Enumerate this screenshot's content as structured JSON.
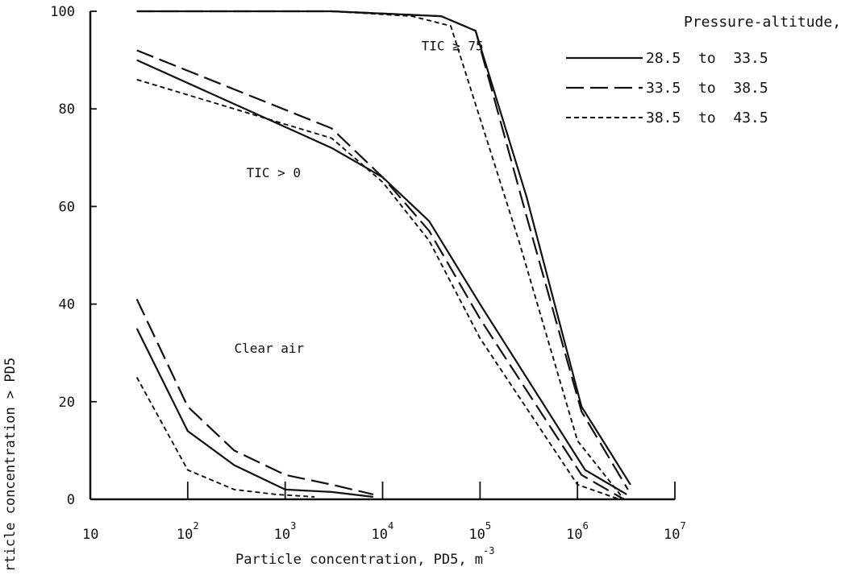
{
  "chart_data": {
    "type": "line",
    "x_scale": "log",
    "xlabel": "Particle concentration, PD5, m",
    "xlabel_exponent": "-3",
    "ylabel": "rticle concentration > PD5",
    "xlim": [
      10,
      10000000
    ],
    "ylim": [
      0,
      100
    ],
    "grid": false,
    "x_ticks": [
      {
        "base": "10",
        "exp": "",
        "value": 10
      },
      {
        "base": "10",
        "exp": "2",
        "value": 100
      },
      {
        "base": "10",
        "exp": "3",
        "value": 1000
      },
      {
        "base": "10",
        "exp": "4",
        "value": 10000
      },
      {
        "base": "10",
        "exp": "5",
        "value": 100000
      },
      {
        "base": "10",
        "exp": "6",
        "value": 1000000
      },
      {
        "base": "10",
        "exp": "7",
        "value": 10000000
      }
    ],
    "y_ticks": [
      "0",
      "20",
      "40",
      "60",
      "80",
      "100"
    ],
    "legend": {
      "title": "Pressure-altitude, kft",
      "placement": "top-right",
      "entries": [
        {
          "label": "28.5  to  33.5",
          "style": "solid"
        },
        {
          "label": "33.5  to  38.5",
          "style": "long-dash"
        },
        {
          "label": "38.5  to  43.5",
          "style": "short-dash"
        }
      ]
    },
    "annotations": [
      {
        "text": "TIC ≥ 75",
        "x": 25000,
        "y": 92
      },
      {
        "text": "TIC > 0",
        "x": 400,
        "y": 66
      },
      {
        "text": "Clear air",
        "x": 300,
        "y": 30
      }
    ],
    "series": [
      {
        "group": "TIC ≥ 75",
        "style": "solid",
        "x": [
          30,
          3000,
          40000,
          90000,
          300000,
          1100000,
          3500000
        ],
        "y": [
          100,
          100,
          99,
          96,
          62,
          19,
          3
        ]
      },
      {
        "group": "TIC ≥ 75",
        "style": "long-dash",
        "x": [
          30,
          3000,
          40000,
          90000,
          300000,
          1100000,
          3300000
        ],
        "y": [
          100,
          100,
          99,
          96,
          58,
          18,
          2
        ]
      },
      {
        "group": "TIC ≥ 75",
        "style": "short-dash",
        "x": [
          30,
          3000,
          20000,
          50000,
          250000,
          1000000,
          3000000
        ],
        "y": [
          100,
          100,
          99,
          97,
          53,
          12,
          0
        ]
      },
      {
        "group": "TIC > 0",
        "style": "solid",
        "x": [
          30,
          3000,
          10000,
          30000,
          100000,
          1200000,
          3200000
        ],
        "y": [
          90,
          72,
          66,
          57,
          40,
          6,
          1
        ]
      },
      {
        "group": "TIC > 0",
        "style": "long-dash",
        "x": [
          30,
          3000,
          10000,
          30000,
          100000,
          1100000,
          3000000
        ],
        "y": [
          92,
          76,
          66,
          55,
          37,
          5,
          0
        ]
      },
      {
        "group": "TIC > 0",
        "style": "short-dash",
        "x": [
          30,
          3000,
          10000,
          30000,
          100000,
          1000000,
          2700000
        ],
        "y": [
          86,
          74,
          65,
          53,
          33,
          3,
          0
        ]
      },
      {
        "group": "Clear air",
        "style": "solid",
        "x": [
          30,
          100,
          300,
          1000,
          3000,
          8000
        ],
        "y": [
          35,
          14,
          7,
          2,
          1.5,
          0.5
        ]
      },
      {
        "group": "Clear air",
        "style": "long-dash",
        "x": [
          30,
          100,
          300,
          1000,
          3000,
          8000
        ],
        "y": [
          41,
          19,
          10,
          5,
          3,
          1
        ]
      },
      {
        "group": "Clear air",
        "style": "short-dash",
        "x": [
          30,
          100,
          300,
          800,
          2000
        ],
        "y": [
          25,
          6,
          2,
          1,
          0.5
        ]
      }
    ]
  }
}
